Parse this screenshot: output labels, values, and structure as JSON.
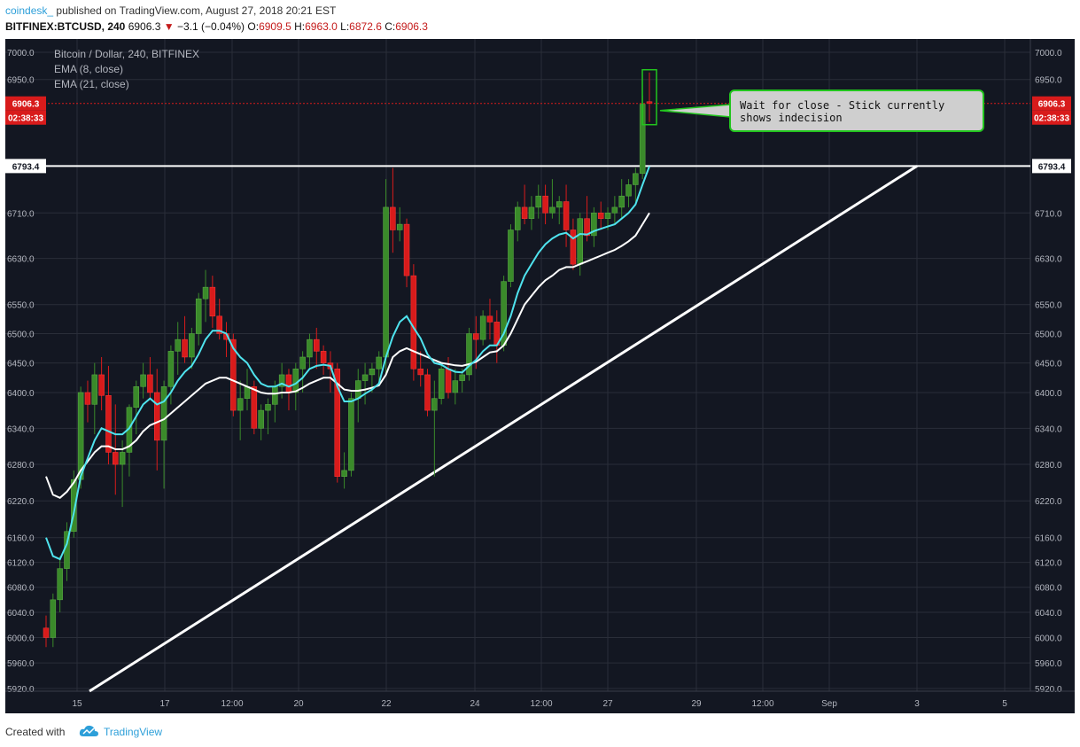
{
  "header": {
    "author": "coindesk_",
    "published": "published on TradingView.com, August 27, 2018 20:21 EST",
    "symbol": "BITFINEX:BTCUSD, 240",
    "last": "6906.3",
    "change": "−3.1 (−0.04%)",
    "o_label": "O:",
    "o_value": "6909.5",
    "h_label": "H:",
    "h_value": "6963.0",
    "l_label": "L:",
    "l_value": "6872.6",
    "c_label": "C:",
    "c_value": "6906.3"
  },
  "legend": {
    "title": "Bitcoin / Dollar, 240, BITFINEX",
    "ema8": "EMA (8, close)",
    "ema21": "EMA (21, close)"
  },
  "annotation": {
    "text1": "Wait for close - Stick currently",
    "text2": "shows indecision"
  },
  "footer": {
    "created_with": "Created with",
    "brand": "TradingView"
  },
  "colors": {
    "background": "#131722",
    "grid": "#2a2e39",
    "up": "#3a8a2a",
    "down": "#d81b1b",
    "ema8": "#4fe3ee",
    "ema21": "#ffffff",
    "trendline": "#ffffff",
    "price_tag": "#d81b1b",
    "callout_border": "#22c51e"
  },
  "chart_data": {
    "type": "candlestick",
    "title": "Bitcoin / Dollar, 240, BITFINEX",
    "y_scale": "log",
    "ylim": [
      5920,
      7020
    ],
    "y_ticks": [
      "7000.0",
      "6950.0",
      "6710.0",
      "6630.0",
      "6550.0",
      "6500.0",
      "6450.0",
      "6400.0",
      "6340.0",
      "6280.0",
      "6220.0",
      "6160.0",
      "6120.0",
      "6080.0",
      "6040.0",
      "6000.0",
      "5960.0",
      "5920.0"
    ],
    "x_ticks": [
      "15",
      "17",
      "12:00",
      "20",
      "22",
      "24",
      "12:00",
      "27",
      "29",
      "12:00",
      "Sep",
      "3",
      "5"
    ],
    "current_price": "6906.3",
    "countdown": "02:38:33",
    "horizontal_level": "6793.4",
    "candles": [
      [
        6015,
        6035,
        5985,
        6000
      ],
      [
        6000,
        6070,
        5985,
        6060
      ],
      [
        6060,
        6130,
        6040,
        6110
      ],
      [
        6110,
        6185,
        6090,
        6170
      ],
      [
        6170,
        6270,
        6160,
        6255
      ],
      [
        6255,
        6410,
        6240,
        6400
      ],
      [
        6400,
        6420,
        6350,
        6380
      ],
      [
        6380,
        6450,
        6330,
        6430
      ],
      [
        6430,
        6460,
        6370,
        6395
      ],
      [
        6395,
        6445,
        6280,
        6300
      ],
      [
        6300,
        6380,
        6230,
        6280
      ],
      [
        6280,
        6320,
        6210,
        6300
      ],
      [
        6300,
        6380,
        6260,
        6375
      ],
      [
        6375,
        6420,
        6330,
        6410
      ],
      [
        6410,
        6450,
        6390,
        6430
      ],
      [
        6430,
        6460,
        6390,
        6400
      ],
      [
        6400,
        6440,
        6270,
        6320
      ],
      [
        6320,
        6420,
        6240,
        6410
      ],
      [
        6410,
        6480,
        6380,
        6470
      ],
      [
        6470,
        6520,
        6430,
        6490
      ],
      [
        6490,
        6530,
        6450,
        6460
      ],
      [
        6460,
        6510,
        6440,
        6500
      ],
      [
        6500,
        6570,
        6480,
        6560
      ],
      [
        6560,
        6610,
        6520,
        6580
      ],
      [
        6580,
        6600,
        6510,
        6530
      ],
      [
        6530,
        6560,
        6490,
        6500
      ],
      [
        6500,
        6520,
        6460,
        6490
      ],
      [
        6490,
        6500,
        6360,
        6370
      ],
      [
        6370,
        6420,
        6320,
        6390
      ],
      [
        6390,
        6440,
        6370,
        6410
      ],
      [
        6410,
        6420,
        6330,
        6340
      ],
      [
        6340,
        6380,
        6320,
        6370
      ],
      [
        6370,
        6390,
        6330,
        6380
      ],
      [
        6380,
        6420,
        6350,
        6410
      ],
      [
        6410,
        6450,
        6390,
        6430
      ],
      [
        6430,
        6440,
        6370,
        6400
      ],
      [
        6400,
        6450,
        6370,
        6440
      ],
      [
        6440,
        6470,
        6400,
        6460
      ],
      [
        6460,
        6500,
        6440,
        6490
      ],
      [
        6490,
        6510,
        6440,
        6470
      ],
      [
        6470,
        6480,
        6430,
        6450
      ],
      [
        6450,
        6470,
        6400,
        6440
      ],
      [
        6440,
        6450,
        6250,
        6260
      ],
      [
        6260,
        6300,
        6240,
        6270
      ],
      [
        6270,
        6400,
        6260,
        6390
      ],
      [
        6390,
        6440,
        6350,
        6420
      ],
      [
        6420,
        6450,
        6380,
        6430
      ],
      [
        6430,
        6450,
        6400,
        6440
      ],
      [
        6440,
        6470,
        6420,
        6460
      ],
      [
        6460,
        6770,
        6430,
        6720
      ],
      [
        6720,
        6790,
        6640,
        6680
      ],
      [
        6680,
        6720,
        6660,
        6690
      ],
      [
        6690,
        6700,
        6580,
        6600
      ],
      [
        6600,
        6620,
        6420,
        6440
      ],
      [
        6440,
        6470,
        6410,
        6430
      ],
      [
        6430,
        6440,
        6360,
        6370
      ],
      [
        6370,
        6420,
        6260,
        6390
      ],
      [
        6390,
        6450,
        6380,
        6440
      ],
      [
        6440,
        6460,
        6390,
        6400
      ],
      [
        6400,
        6440,
        6380,
        6420
      ],
      [
        6420,
        6440,
        6400,
        6430
      ],
      [
        6430,
        6510,
        6420,
        6500
      ],
      [
        6500,
        6530,
        6440,
        6490
      ],
      [
        6490,
        6540,
        6480,
        6530
      ],
      [
        6530,
        6560,
        6490,
        6520
      ],
      [
        6520,
        6540,
        6450,
        6480
      ],
      [
        6480,
        6600,
        6470,
        6590
      ],
      [
        6590,
        6690,
        6580,
        6680
      ],
      [
        6680,
        6730,
        6660,
        6720
      ],
      [
        6720,
        6760,
        6690,
        6700
      ],
      [
        6700,
        6740,
        6680,
        6720
      ],
      [
        6720,
        6760,
        6700,
        6740
      ],
      [
        6740,
        6760,
        6690,
        6710
      ],
      [
        6710,
        6770,
        6700,
        6720
      ],
      [
        6720,
        6740,
        6690,
        6730
      ],
      [
        6730,
        6760,
        6650,
        6680
      ],
      [
        6680,
        6700,
        6610,
        6620
      ],
      [
        6620,
        6710,
        6600,
        6700
      ],
      [
        6700,
        6740,
        6660,
        6670
      ],
      [
        6670,
        6720,
        6650,
        6710
      ],
      [
        6710,
        6730,
        6680,
        6700
      ],
      [
        6700,
        6720,
        6680,
        6710
      ],
      [
        6710,
        6740,
        6690,
        6720
      ],
      [
        6720,
        6770,
        6700,
        6740
      ],
      [
        6740,
        6770,
        6720,
        6760
      ],
      [
        6760,
        6790,
        6730,
        6780
      ],
      [
        6780,
        6920,
        6770,
        6905
      ],
      [
        6909.5,
        6963,
        6872.6,
        6906.3
      ]
    ],
    "ema8": [
      6160,
      6130,
      6125,
      6150,
      6200,
      6260,
      6290,
      6320,
      6340,
      6335,
      6330,
      6330,
      6340,
      6360,
      6380,
      6390,
      6380,
      6385,
      6400,
      6420,
      6435,
      6445,
      6465,
      6490,
      6505,
      6505,
      6500,
      6475,
      6460,
      6450,
      6430,
      6415,
      6410,
      6410,
      6415,
      6410,
      6415,
      6425,
      6440,
      6445,
      6447,
      6445,
      6410,
      6385,
      6385,
      6390,
      6398,
      6405,
      6415,
      6460,
      6495,
      6520,
      6530,
      6510,
      6492,
      6465,
      6450,
      6447,
      6440,
      6435,
      6434,
      6445,
      6455,
      6470,
      6480,
      6480,
      6500,
      6530,
      6570,
      6600,
      6620,
      6640,
      6655,
      6665,
      6672,
      6675,
      6665,
      6673,
      6672,
      6678,
      6682,
      6686,
      6690,
      6700,
      6710,
      6725,
      6760,
      6793
    ],
    "ema21": [
      6260,
      6230,
      6225,
      6235,
      6250,
      6270,
      6285,
      6300,
      6310,
      6310,
      6305,
      6305,
      6310,
      6320,
      6335,
      6345,
      6350,
      6355,
      6365,
      6375,
      6385,
      6395,
      6405,
      6415,
      6420,
      6425,
      6425,
      6420,
      6415,
      6410,
      6405,
      6400,
      6398,
      6398,
      6400,
      6400,
      6402,
      6408,
      6415,
      6420,
      6425,
      6425,
      6415,
      6405,
      6403,
      6403,
      6405,
      6408,
      6412,
      6430,
      6460,
      6470,
      6475,
      6470,
      6465,
      6460,
      6455,
      6450,
      6448,
      6446,
      6445,
      6448,
      6452,
      6460,
      6468,
      6470,
      6480,
      6500,
      6525,
      6550,
      6565,
      6580,
      6592,
      6600,
      6610,
      6615,
      6615,
      6620,
      6625,
      6630,
      6635,
      6640,
      6645,
      6652,
      6660,
      6670,
      6690,
      6710
    ]
  }
}
